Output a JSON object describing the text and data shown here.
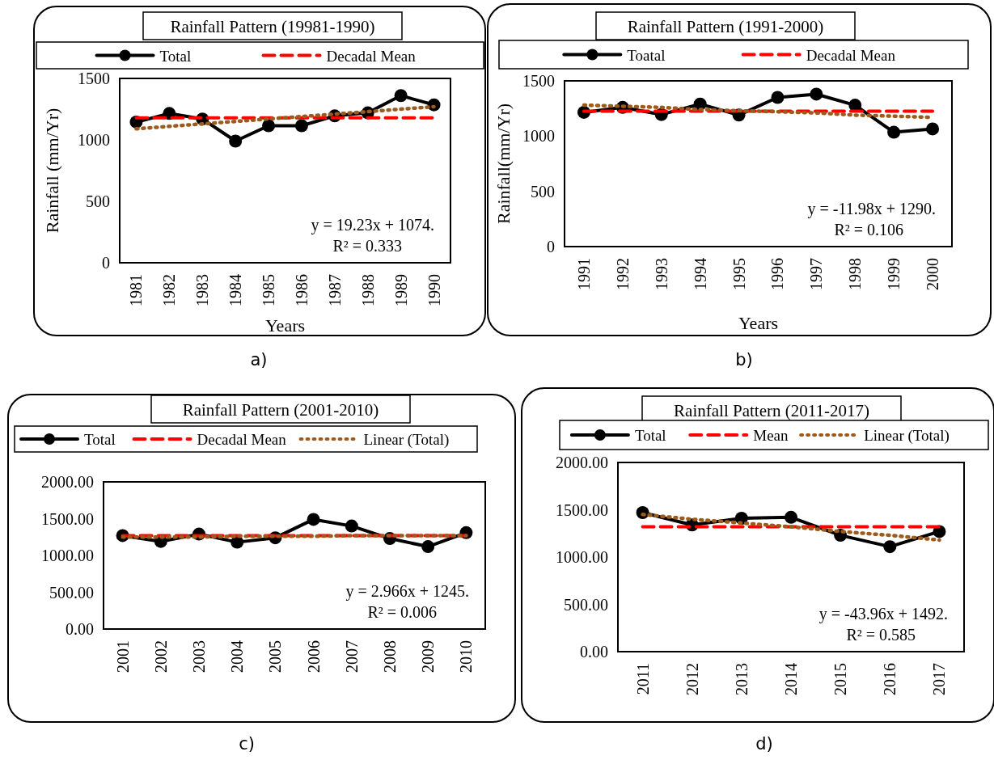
{
  "chart_data": [
    {
      "type": "line",
      "title": "Rainfall Pattern (19981-1990)",
      "xlabel": "Years",
      "ylabel": "Rainfall (mm/Yr)",
      "categories": [
        "1981",
        "1982",
        "1983",
        "1984",
        "1985",
        "1986",
        "1987",
        "1988",
        "1989",
        "1990"
      ],
      "ylim": [
        0,
        1500
      ],
      "yticks": [
        0,
        500,
        1000,
        1500
      ],
      "grid": false,
      "legend": "top",
      "series": [
        {
          "name": "Total",
          "color": "#000000",
          "marker": "circle",
          "line_style": "solid",
          "values": [
            1145,
            1215,
            1170,
            990,
            1115,
            1115,
            1195,
            1220,
            1360,
            1285
          ]
        },
        {
          "name": "Decadal Mean",
          "color": "#ff0000",
          "marker": "none",
          "line_style": "dashed",
          "values": [
            1180,
            1180,
            1180,
            1180,
            1180,
            1180,
            1180,
            1180,
            1180,
            1180
          ]
        },
        {
          "color": "#9c5a1c",
          "marker": "none",
          "line_style": "dotted",
          "values": [
            1090,
            1110,
            1130,
            1150,
            1170,
            1190,
            1210,
            1230,
            1250,
            1270
          ]
        }
      ],
      "annotations": [
        "y = 19.23x + 1074.",
        "R² = 0.333",
        "a)"
      ]
    },
    {
      "type": "line",
      "title": "Rainfall Pattern (1991-2000)",
      "xlabel": "Years",
      "ylabel": "Rainfall(mm/Yr)",
      "categories": [
        "1991",
        "1992",
        "1993",
        "1994",
        "1995",
        "1996",
        "1997",
        "1998",
        "1999",
        "2000"
      ],
      "ylim": [
        0,
        1500
      ],
      "yticks": [
        0,
        500,
        1000,
        1500
      ],
      "grid": false,
      "legend": "top",
      "series": [
        {
          "name": "Toatal",
          "color": "#000000",
          "marker": "circle",
          "line_style": "solid",
          "values": [
            1215,
            1260,
            1195,
            1290,
            1190,
            1350,
            1380,
            1280,
            1035,
            1065
          ]
        },
        {
          "name": "Decadal Mean",
          "color": "#ff0000",
          "marker": "none",
          "line_style": "dashed",
          "values": [
            1225,
            1225,
            1225,
            1225,
            1225,
            1225,
            1225,
            1225,
            1225,
            1225
          ]
        },
        {
          "color": "#9c5a1c",
          "marker": "none",
          "line_style": "dotted",
          "values": [
            1280,
            1270,
            1260,
            1240,
            1230,
            1220,
            1210,
            1190,
            1180,
            1170
          ]
        }
      ],
      "annotations": [
        "y = -11.98x + 1290.",
        "R² = 0.106",
        "b)"
      ]
    },
    {
      "type": "line",
      "title": "Rainfall Pattern (2001-2010)",
      "categories": [
        "2001",
        "2002",
        "2003",
        "2004",
        "2005",
        "2006",
        "2007",
        "2008",
        "2009",
        "2010"
      ],
      "ylim": [
        0,
        2000
      ],
      "yticks": [
        {
          "value": 0,
          "label": "0.00"
        },
        {
          "value": 500,
          "label": "500.00"
        },
        {
          "value": 1000,
          "label": "1000.00"
        },
        {
          "value": 1500,
          "label": "1500.00"
        },
        {
          "value": 2000,
          "label": "2000.00"
        }
      ],
      "grid": false,
      "legend": "top",
      "series": [
        {
          "name": "Total",
          "color": "#000000",
          "marker": "circle",
          "line_style": "solid",
          "values": [
            1270,
            1190,
            1290,
            1180,
            1240,
            1490,
            1400,
            1230,
            1120,
            1310
          ]
        },
        {
          "name": "Decadal Mean",
          "color": "#ff0000",
          "marker": "none",
          "line_style": "dashed",
          "values": [
            1270,
            1270,
            1270,
            1270,
            1270,
            1270,
            1270,
            1270,
            1270,
            1270
          ]
        },
        {
          "name": "Linear (Total)",
          "color": "#9c5a1c",
          "marker": "none",
          "line_style": "dotted",
          "values": [
            1250,
            1250,
            1250,
            1260,
            1260,
            1260,
            1270,
            1270,
            1270,
            1270
          ]
        }
      ],
      "annotations": [
        "y = 2.966x + 1245.",
        "R² = 0.006",
        "c)"
      ]
    },
    {
      "type": "line",
      "title": "Rainfall Pattern (2011-2017)",
      "categories": [
        "2011",
        "2012",
        "2013",
        "2014",
        "2015",
        "2016",
        "2017"
      ],
      "ylim": [
        0,
        2000
      ],
      "yticks": [
        {
          "value": 0,
          "label": "0.00"
        },
        {
          "value": 500,
          "label": "500.00"
        },
        {
          "value": 1000,
          "label": "1000.00"
        },
        {
          "value": 1500,
          "label": "1500.00"
        },
        {
          "value": 2000,
          "label": "2000.00"
        }
      ],
      "grid": false,
      "legend": "top",
      "series": [
        {
          "name": "Total",
          "color": "#000000",
          "marker": "circle",
          "line_style": "solid",
          "values": [
            1470,
            1340,
            1410,
            1420,
            1230,
            1110,
            1270
          ]
        },
        {
          "name": "Mean",
          "color": "#ff0000",
          "marker": "none",
          "line_style": "dashed",
          "values": [
            1320,
            1320,
            1320,
            1320,
            1320,
            1320,
            1320
          ]
        },
        {
          "name": "Linear (Total)",
          "color": "#9c5a1c",
          "marker": "none",
          "line_style": "dotted",
          "values": [
            1450,
            1400,
            1360,
            1320,
            1270,
            1230,
            1180
          ]
        }
      ],
      "annotations": [
        "y = -43.96x + 1492.",
        "R² = 0.585",
        "d)"
      ]
    }
  ]
}
